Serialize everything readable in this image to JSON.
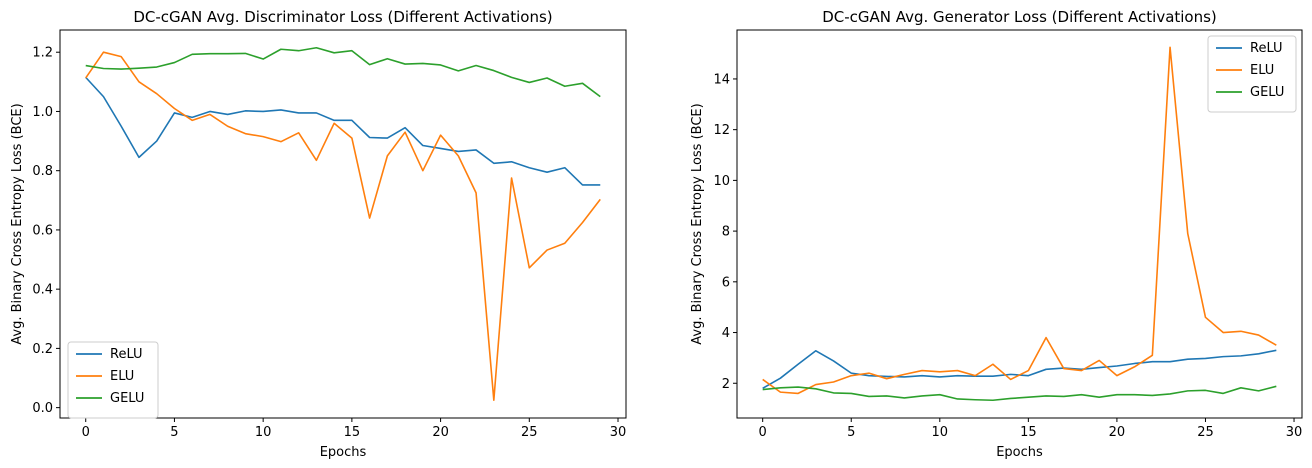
{
  "chart_data": [
    {
      "type": "line",
      "title": "DC-cGAN Avg. Discriminator Loss (Different Activations)",
      "xlabel": "Epochs",
      "ylabel": "Avg. Binary Cross Entropy Loss (BCE)",
      "xlim": [
        -1.45,
        30.45
      ],
      "ylim": [
        -0.035,
        1.275
      ],
      "xticks": [
        0,
        5,
        10,
        15,
        20,
        25,
        30
      ],
      "xtick_labels": [
        "0",
        "5",
        "10",
        "15",
        "20",
        "25",
        "30"
      ],
      "yticks": [
        0.0,
        0.2,
        0.4,
        0.6,
        0.8,
        1.0,
        1.2
      ],
      "ytick_labels": [
        "0.0",
        "0.2",
        "0.4",
        "0.6",
        "0.8",
        "1.0",
        "1.2"
      ],
      "legend_position": "lower-left",
      "x": [
        0,
        1,
        2,
        3,
        4,
        5,
        6,
        7,
        8,
        9,
        10,
        11,
        12,
        13,
        14,
        15,
        16,
        17,
        18,
        19,
        20,
        21,
        22,
        23,
        24,
        25,
        26,
        27,
        28,
        29
      ],
      "series": [
        {
          "name": "ReLU",
          "color": "#1f77b4",
          "values": [
            1.115,
            1.05,
            0.95,
            0.845,
            0.9,
            0.995,
            0.98,
            1.0,
            0.99,
            1.002,
            1.0,
            1.005,
            0.995,
            0.995,
            0.97,
            0.97,
            0.912,
            0.91,
            0.945,
            0.885,
            0.875,
            0.865,
            0.87,
            0.825,
            0.83,
            0.81,
            0.795,
            0.81,
            0.752,
            0.752
          ]
        },
        {
          "name": "ELU",
          "color": "#ff7f0e",
          "values": [
            1.113,
            1.2,
            1.185,
            1.1,
            1.06,
            1.01,
            0.97,
            0.99,
            0.95,
            0.925,
            0.915,
            0.898,
            0.928,
            0.835,
            0.96,
            0.91,
            0.64,
            0.85,
            0.93,
            0.8,
            0.92,
            0.85,
            0.725,
            0.025,
            0.775,
            0.472,
            0.532,
            0.555,
            0.625,
            0.703
          ]
        },
        {
          "name": "GELU",
          "color": "#2ca02c",
          "values": [
            1.155,
            1.145,
            1.143,
            1.146,
            1.15,
            1.165,
            1.193,
            1.195,
            1.195,
            1.196,
            1.177,
            1.21,
            1.205,
            1.215,
            1.198,
            1.205,
            1.158,
            1.178,
            1.16,
            1.162,
            1.157,
            1.137,
            1.155,
            1.138,
            1.115,
            1.098,
            1.113,
            1.085,
            1.095,
            1.05
          ]
        }
      ]
    },
    {
      "type": "line",
      "title": "DC-cGAN Avg. Generator Loss (Different Activations)",
      "xlabel": "Epochs",
      "ylabel": "Avg. Binary Cross Entropy Loss (BCE)",
      "xlim": [
        -1.45,
        30.45
      ],
      "ylim": [
        0.63,
        15.93
      ],
      "xticks": [
        0,
        5,
        10,
        15,
        20,
        25,
        30
      ],
      "xtick_labels": [
        "0",
        "5",
        "10",
        "15",
        "20",
        "25",
        "30"
      ],
      "yticks": [
        2,
        4,
        6,
        8,
        10,
        12,
        14
      ],
      "ytick_labels": [
        "2",
        "4",
        "6",
        "8",
        "10",
        "12",
        "14"
      ],
      "legend_position": "upper-right",
      "x": [
        0,
        1,
        2,
        3,
        4,
        5,
        6,
        7,
        8,
        9,
        10,
        11,
        12,
        13,
        14,
        15,
        16,
        17,
        18,
        19,
        20,
        21,
        22,
        23,
        24,
        25,
        26,
        27,
        28,
        29
      ],
      "series": [
        {
          "name": "ReLU",
          "color": "#1f77b4",
          "values": [
            1.8,
            2.2,
            2.75,
            3.28,
            2.88,
            2.4,
            2.3,
            2.27,
            2.25,
            2.3,
            2.25,
            2.3,
            2.28,
            2.28,
            2.35,
            2.3,
            2.55,
            2.6,
            2.55,
            2.62,
            2.68,
            2.78,
            2.85,
            2.85,
            2.95,
            2.98,
            3.05,
            3.08,
            3.16,
            3.3
          ]
        },
        {
          "name": "ELU",
          "color": "#ff7f0e",
          "values": [
            2.15,
            1.65,
            1.6,
            1.95,
            2.05,
            2.3,
            2.4,
            2.18,
            2.35,
            2.5,
            2.45,
            2.5,
            2.3,
            2.75,
            2.15,
            2.5,
            3.8,
            2.58,
            2.5,
            2.9,
            2.3,
            2.65,
            3.1,
            15.25,
            7.9,
            4.6,
            4.0,
            4.05,
            3.9,
            3.5
          ]
        },
        {
          "name": "GELU",
          "color": "#2ca02c",
          "values": [
            1.75,
            1.82,
            1.85,
            1.78,
            1.62,
            1.6,
            1.48,
            1.5,
            1.42,
            1.5,
            1.55,
            1.38,
            1.35,
            1.33,
            1.4,
            1.45,
            1.5,
            1.48,
            1.55,
            1.45,
            1.55,
            1.55,
            1.52,
            1.58,
            1.7,
            1.72,
            1.6,
            1.82,
            1.7,
            1.88
          ]
        }
      ]
    }
  ]
}
